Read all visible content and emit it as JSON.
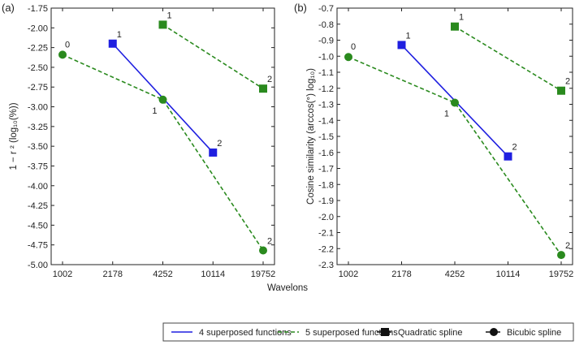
{
  "chart_data": [
    {
      "type": "line",
      "panel_label": "(a)",
      "categories": [
        "1002",
        "2178",
        "4252",
        "10114",
        "19752"
      ],
      "ylabel": "1 − r ² (log₁₀(%))",
      "ylim": [
        -5.0,
        -1.75
      ],
      "yticks": [
        -1.75,
        -2.0,
        -2.25,
        -2.5,
        -2.75,
        -3.0,
        -3.25,
        -3.5,
        -3.75,
        -4.0,
        -4.25,
        -4.5,
        -4.75,
        -5.0
      ],
      "ytick_labels": [
        "-1.75",
        "-2.00",
        "-2.25",
        "-2.50",
        "-2.75",
        "-3.00",
        "-3.25",
        "-3.50",
        "-3.75",
        "-4.00",
        "-4.25",
        "-4.50",
        "-4.75",
        "-5.00"
      ],
      "series": [
        {
          "name": "4 superposed functions, Quadratic spline",
          "style": "solid",
          "marker": "square",
          "color": "#1f1fe0",
          "points": [
            {
              "x": 1,
              "y": -2.2,
              "label": "1"
            },
            {
              "x": 3,
              "y": -3.58,
              "label": "2"
            }
          ]
        },
        {
          "name": "5 superposed functions, Quadratic spline",
          "style": "dashed",
          "marker": "square",
          "color": "#2a8a1e",
          "points": [
            {
              "x": 2,
              "y": -1.96,
              "label": "1"
            },
            {
              "x": 4,
              "y": -2.77,
              "label": "2"
            }
          ]
        },
        {
          "name": "5 superposed functions, Bicubic spline",
          "style": "dashed",
          "marker": "circle",
          "color": "#2a8a1e",
          "points": [
            {
              "x": 0,
              "y": -2.34,
              "label": "0"
            },
            {
              "x": 2,
              "y": -2.91,
              "label": "1"
            },
            {
              "x": 4,
              "y": -4.82,
              "label": "2"
            }
          ]
        }
      ]
    },
    {
      "type": "line",
      "panel_label": "(b)",
      "categories": [
        "1002",
        "2178",
        "4252",
        "10114",
        "19752"
      ],
      "ylabel": "Cosine similarity (arccos(°) log₁₀)",
      "ylim": [
        -2.3,
        -0.7
      ],
      "yticks": [
        -0.7,
        -0.8,
        -0.9,
        -1.0,
        -1.1,
        -1.2,
        -1.3,
        -1.4,
        -1.5,
        -1.6,
        -1.7,
        -1.8,
        -1.9,
        -2.0,
        -2.1,
        -2.2,
        -2.3
      ],
      "ytick_labels": [
        "-0.7",
        "-0.8",
        "-0.9",
        "-1.0",
        "-1.1",
        "-1.2",
        "-1.3",
        "-1.4",
        "-1.5",
        "-1.6",
        "-1.7",
        "-1.8",
        "-1.9",
        "-2.0",
        "-2.1",
        "-2.2",
        "-2.3"
      ],
      "series": [
        {
          "name": "4 superposed functions, Quadratic spline",
          "style": "solid",
          "marker": "square",
          "color": "#1f1fe0",
          "points": [
            {
              "x": 1,
              "y": -0.93,
              "label": "1"
            },
            {
              "x": 3,
              "y": -1.625,
              "label": "2"
            }
          ]
        },
        {
          "name": "5 superposed functions, Quadratic spline",
          "style": "dashed",
          "marker": "square",
          "color": "#2a8a1e",
          "points": [
            {
              "x": 2,
              "y": -0.815,
              "label": "1"
            },
            {
              "x": 4,
              "y": -1.215,
              "label": "2"
            }
          ]
        },
        {
          "name": "5 superposed functions, Bicubic spline",
          "style": "dashed",
          "marker": "circle",
          "color": "#2a8a1e",
          "points": [
            {
              "x": 0,
              "y": -1.005,
              "label": "0"
            },
            {
              "x": 2,
              "y": -1.29,
              "label": "1"
            },
            {
              "x": 4,
              "y": -2.24,
              "label": "2"
            }
          ]
        }
      ]
    }
  ],
  "xlabel": "Wavelons",
  "legend": {
    "position": "bottom",
    "entries": [
      {
        "label": "4 superposed functions",
        "kind": "line",
        "style": "solid",
        "color": "#1f1fe0"
      },
      {
        "label": "5 superposed functions",
        "kind": "line",
        "style": "dashed",
        "color": "#2a8a1e"
      },
      {
        "label": "Quadratic spline",
        "kind": "marker",
        "marker": "square",
        "color": "#111111"
      },
      {
        "label": "Bicubic spline",
        "kind": "marker",
        "marker": "circle",
        "color": "#111111"
      }
    ]
  }
}
